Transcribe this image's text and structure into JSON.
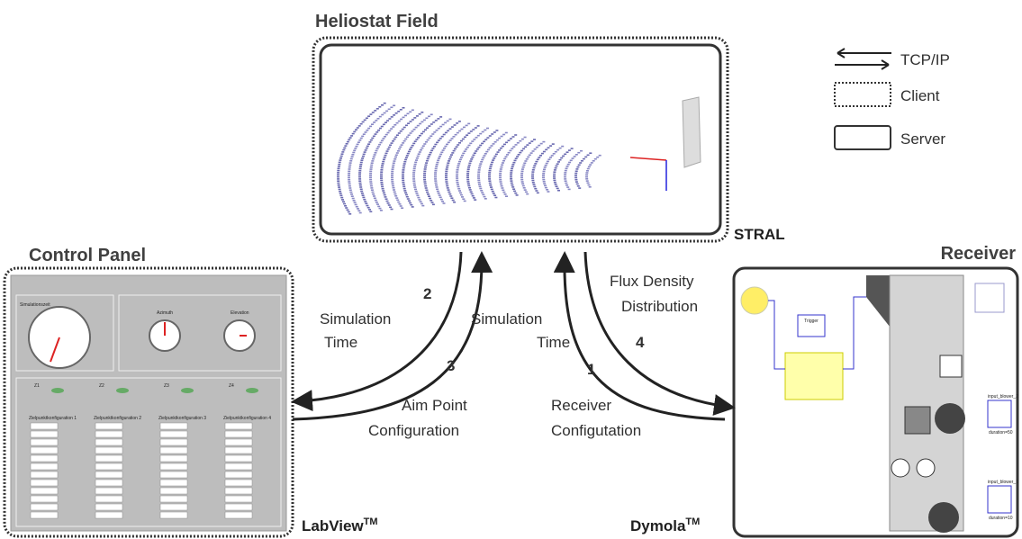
{
  "heliostat_field": {
    "title": "Heliostat Field",
    "software": "STRAL"
  },
  "control_panel": {
    "title": "Control Panel",
    "software": "LabView",
    "software_mark": "TM",
    "panel_texts": {
      "simulation_time": "Simulationszeit",
      "azimuth": "Azimuth",
      "elevation": "Elevation",
      "zones": [
        "Z1",
        "Z2",
        "Z3",
        "Z4"
      ],
      "configurations": [
        "Zielpunktkonfiguration 1",
        "Zielpunktkonfiguration 2",
        "Zielpunktkonfiguration 3",
        "Zielpunktkonfiguration 4"
      ]
    }
  },
  "receiver": {
    "title": "Receiver",
    "software": "Dymola",
    "software_mark": "TM",
    "model_texts": {
      "trigger": "Trigger",
      "blower_2": "input_blower_2",
      "duration_2": "duration=50",
      "blower_1": "input_blower_1",
      "duration_1": "duration=10"
    }
  },
  "legend": [
    {
      "label": "TCP/IP"
    },
    {
      "label": "Client"
    },
    {
      "label": "Server"
    }
  ],
  "edges": [
    {
      "number": "2",
      "label": [
        "Simulation",
        "Time"
      ]
    },
    {
      "number": "3",
      "label": [
        "Aim Point",
        "Configuration"
      ]
    },
    {
      "number": null,
      "label": [
        "Simulation",
        "Time"
      ]
    },
    {
      "number": "1",
      "label": [
        "Receiver",
        "Configutation"
      ]
    },
    {
      "number": "4",
      "label": [
        "Flux Density",
        "Distribution"
      ]
    }
  ]
}
